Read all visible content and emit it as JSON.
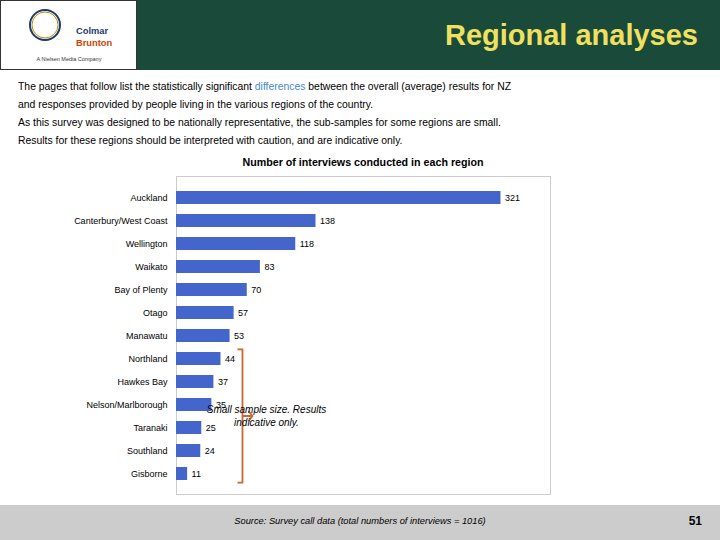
{
  "chart_data": {
    "type": "bar",
    "orientation": "horizontal",
    "title": "Number of interviews conducted in each region",
    "categories": [
      "Auckland",
      "Canterbury/West Coast",
      "Wellington",
      "Waikato",
      "Bay of Plenty",
      "Otago",
      "Manawatu",
      "Northland",
      "Hawkes Bay",
      "Nelson/Marlborough",
      "Taranaki",
      "Southland",
      "Gisborne"
    ],
    "values": [
      321,
      138,
      118,
      83,
      70,
      57,
      53,
      44,
      37,
      35,
      25,
      24,
      11
    ],
    "color": "#4466cc",
    "xlim": [
      0,
      370
    ],
    "data_labels": true,
    "tick_labels": "y",
    "grid": false,
    "header": "Regional analyses",
    "logo": [
      "Colmar",
      "Brunton",
      "A Nielsen Media Company"
    ],
    "paragraphs": [
      [
        {
          "text": "The pages that follow list the statistically significant "
        },
        {
          "text": "differences",
          "color": "#4488cc"
        },
        {
          "text": " between the overall (average) results for NZ"
        }
      ],
      [
        {
          "text": "and responses provided by people living in the various regions of the country."
        }
      ],
      [
        {
          "text": "As this survey was designed to be nationally representative, the sub-samples for some regions are small."
        }
      ],
      [
        {
          "text": "Results for these regions should be interpreted with caution, and are indicative only."
        }
      ]
    ],
    "annotations": [
      {
        "text": [
          "Small sample size. Results",
          "indicative only."
        ],
        "categories": [
          "Northland",
          "Hawkes Bay",
          "Nelson/Marlborough",
          "Taranaki",
          "Southland",
          "Gisborne"
        ],
        "color": "#cc6633"
      }
    ],
    "source": "Source: Survey call data (total numbers of interviews = 1016)",
    "page_number": "51"
  }
}
